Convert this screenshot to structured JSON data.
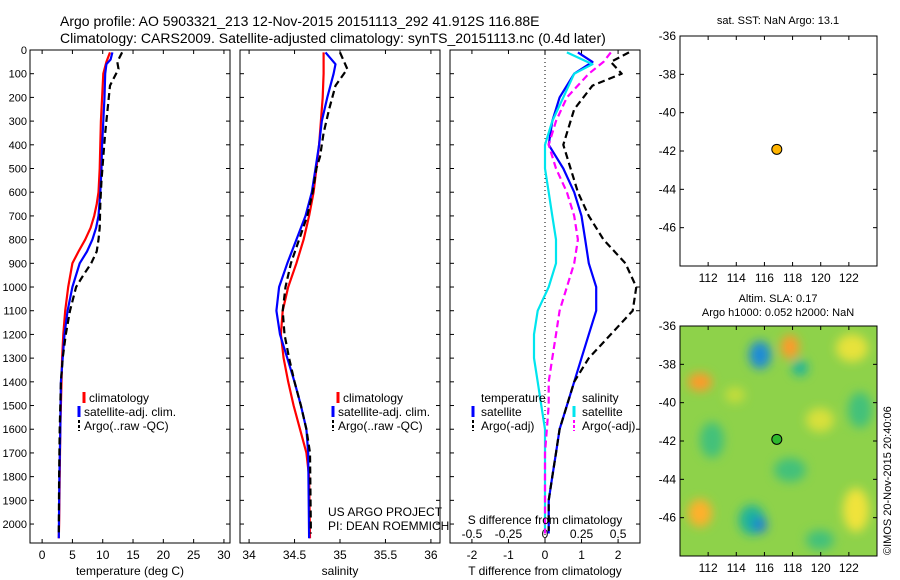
{
  "header": {
    "line1": "Argo profile: AO 5903321_213 12-Nov-2015 20151113_292 41.912S 116.88E",
    "line2": "Climatology: CARS2009. Satellite-adjusted climatology: synTS_20151113.nc (0.4d later)"
  },
  "colors": {
    "climatology": "#ff0000",
    "satellite": "#0000ff",
    "argo": "#000000",
    "sal_satellite": "#00e5ee",
    "sal_argo": "#ff00ff",
    "location_marker_sst": "#ffb400",
    "location_marker_sla": "#2db82d"
  },
  "chart_data": [
    {
      "type": "line",
      "id": "temperature",
      "xlabel": "temperature (deg C)",
      "xlim": [
        -2,
        31
      ],
      "xticks": [
        0,
        5,
        10,
        15,
        20,
        25,
        30
      ],
      "ylim": [
        0,
        2080
      ],
      "yticks": [
        0,
        100,
        200,
        300,
        400,
        500,
        600,
        700,
        800,
        900,
        1000,
        1100,
        1200,
        1300,
        1400,
        1500,
        1600,
        1700,
        1800,
        1900,
        2000
      ],
      "y_reversed": true,
      "legend": [
        "climatology",
        "satellite-adj. clim.",
        "Argo(..raw -QC)"
      ],
      "series": [
        {
          "name": "climatology",
          "style": "solid",
          "color": "#ff0000",
          "x": [
            11.2,
            10.6,
            10.1,
            9.9,
            9.7,
            9.6,
            9.5,
            9.3,
            9.0,
            8.6,
            8.0,
            7.1,
            6.0,
            5.0,
            4.3,
            3.8,
            3.5,
            3.3,
            3.2,
            3.0,
            2.9,
            2.8,
            2.75
          ],
          "y": [
            10,
            50,
            100,
            200,
            300,
            400,
            500,
            600,
            650,
            700,
            750,
            800,
            850,
            900,
            1000,
            1100,
            1200,
            1300,
            1400,
            1600,
            1800,
            2000,
            2060
          ]
        },
        {
          "name": "satellite-adj. clim.",
          "style": "solid",
          "color": "#0000ff",
          "x": [
            11.6,
            11.3,
            10.6,
            10.4,
            10.3,
            10.1,
            9.9,
            9.8,
            9.6,
            9.3,
            8.9,
            8.3,
            7.4,
            6.2,
            5.0,
            4.2,
            3.7,
            3.4,
            3.1,
            3.0,
            2.85,
            2.75
          ],
          "y": [
            10,
            40,
            60,
            100,
            200,
            300,
            400,
            500,
            600,
            700,
            750,
            800,
            850,
            900,
            1000,
            1100,
            1200,
            1300,
            1400,
            1600,
            1800,
            2060
          ]
        },
        {
          "name": "Argo(..raw -QC)",
          "style": "dashed",
          "color": "#000000",
          "x": [
            13.2,
            12.4,
            12.6,
            11.2,
            10.8,
            10.4,
            10.1,
            9.8,
            9.6,
            9.5,
            9.3,
            9.0,
            8.1,
            6.8,
            5.6,
            4.6,
            3.9,
            3.4,
            3.1,
            2.9,
            2.8,
            2.75
          ],
          "y": [
            10,
            50,
            80,
            150,
            250,
            350,
            450,
            550,
            650,
            750,
            800,
            850,
            900,
            950,
            1000,
            1100,
            1200,
            1300,
            1400,
            1600,
            1800,
            2040
          ]
        }
      ]
    },
    {
      "type": "line",
      "id": "salinity",
      "xlabel": "salinity",
      "xlim": [
        33.9,
        36.1
      ],
      "xticks": [
        34,
        34.5,
        35,
        35.5,
        36
      ],
      "ylim": [
        0,
        2080
      ],
      "y_reversed": true,
      "legend": [
        "climatology",
        "satellite-adj. clim.",
        "Argo(..raw -QC)"
      ],
      "annotation": [
        "US ARGO PROJECT",
        "PI: DEAN ROEMMICH"
      ],
      "series": [
        {
          "name": "climatology",
          "style": "solid",
          "color": "#ff0000",
          "x": [
            34.82,
            34.82,
            34.81,
            34.79,
            34.77,
            34.74,
            34.71,
            34.66,
            34.6,
            34.52,
            34.43,
            34.37,
            34.35,
            34.38,
            34.43,
            34.49,
            34.56,
            34.63,
            34.66,
            34.67
          ],
          "y": [
            10,
            100,
            200,
            300,
            400,
            500,
            600,
            700,
            800,
            900,
            1000,
            1100,
            1200,
            1300,
            1400,
            1500,
            1600,
            1700,
            1800,
            2060
          ]
        },
        {
          "name": "satellite-adj. clim.",
          "style": "solid",
          "color": "#0000ff",
          "x": [
            34.84,
            34.95,
            34.93,
            34.86,
            34.8,
            34.77,
            34.73,
            34.69,
            34.62,
            34.52,
            34.42,
            34.33,
            34.3,
            34.34,
            34.42,
            34.5,
            34.57,
            34.63,
            34.65,
            34.66
          ],
          "y": [
            10,
            60,
            100,
            200,
            300,
            400,
            500,
            600,
            700,
            800,
            900,
            1000,
            1100,
            1200,
            1300,
            1400,
            1500,
            1600,
            1700,
            2060
          ]
        },
        {
          "name": "Argo(..raw -QC)",
          "style": "dashed",
          "color": "#000000",
          "x": [
            35.0,
            35.08,
            34.95,
            34.88,
            34.82,
            34.78,
            34.74,
            34.7,
            34.64,
            34.55,
            34.46,
            34.4,
            34.37,
            34.39,
            34.44,
            34.5,
            34.57,
            34.63,
            34.67,
            34.68
          ],
          "y": [
            10,
            80,
            150,
            250,
            350,
            450,
            500,
            600,
            700,
            800,
            900,
            1000,
            1100,
            1200,
            1300,
            1400,
            1500,
            1600,
            1700,
            2040
          ]
        }
      ]
    },
    {
      "type": "line",
      "id": "differences",
      "xlabel": "T difference from climatology",
      "xlabel_top": "S difference from climatology",
      "xlim": [
        -2.6,
        2.6
      ],
      "xticks": [
        -2,
        -1,
        0,
        1,
        2
      ],
      "xtick_labels": [
        "-2",
        "-1",
        "0",
        "1",
        "2"
      ],
      "top_ticks": [
        -0.5,
        -0.25,
        0,
        0.25,
        0.5
      ],
      "top_tick_labels": [
        "-0.5",
        "-0.25",
        "0",
        "0.25",
        "0.5"
      ],
      "ylim": [
        0,
        2080
      ],
      "y_reversed": true,
      "legend_titles": [
        "temperature",
        "salinity"
      ],
      "legend": [
        "satellite",
        "Argo(-adj)",
        "satellite",
        "Argo(-adj)"
      ],
      "series": [
        {
          "name": "T satellite",
          "style": "solid",
          "color": "#0000ff",
          "x": [
            0.9,
            1.3,
            0.8,
            0.4,
            0.2,
            0.1,
            0.5,
            0.8,
            1.0,
            1.1,
            1.2,
            1.3,
            1.4,
            1.4,
            1.2,
            1.0,
            0.8,
            0.6,
            0.4,
            0.3,
            0.2,
            0.1,
            0.1
          ],
          "y": [
            10,
            50,
            100,
            200,
            300,
            400,
            500,
            600,
            700,
            800,
            900,
            950,
            1000,
            1100,
            1200,
            1300,
            1400,
            1500,
            1600,
            1700,
            1800,
            1900,
            2040
          ]
        },
        {
          "name": "T Argo(-adj)",
          "style": "dashed",
          "color": "#000000",
          "x": [
            2.3,
            1.8,
            2.1,
            1.3,
            0.8,
            0.5,
            0.7,
            0.9,
            1.2,
            1.6,
            2.2,
            2.5,
            2.4,
            1.8,
            1.2,
            0.8,
            0.6,
            0.4,
            0.3,
            0.2,
            0.1,
            0.1
          ],
          "y": [
            10,
            50,
            100,
            150,
            250,
            400,
            500,
            600,
            700,
            800,
            900,
            1000,
            1100,
            1200,
            1300,
            1400,
            1500,
            1600,
            1700,
            1800,
            1900,
            2030
          ]
        },
        {
          "name": "S satellite",
          "style": "solid",
          "color": "#00e5ee",
          "x": [
            0.6,
            1.3,
            0.8,
            0.5,
            0.2,
            0.0,
            0.0,
            0.1,
            0.2,
            0.3,
            0.3,
            0.1,
            -0.2,
            -0.3,
            -0.3,
            -0.2,
            -0.1,
            0.0,
            0.0,
            0.0
          ],
          "y": [
            10,
            60,
            100,
            200,
            300,
            400,
            500,
            600,
            700,
            800,
            900,
            1000,
            1100,
            1200,
            1300,
            1400,
            1500,
            1600,
            1800,
            2040
          ]
        },
        {
          "name": "S Argo(-adj)",
          "style": "dashed",
          "color": "#ff00ff",
          "x": [
            1.8,
            1.6,
            1.2,
            0.6,
            0.3,
            0.1,
            0.3,
            0.6,
            0.8,
            0.9,
            0.8,
            0.6,
            0.4,
            0.3,
            0.2,
            0.1,
            0.1,
            0.0,
            0.0
          ],
          "y": [
            10,
            50,
            100,
            200,
            300,
            400,
            500,
            600,
            700,
            800,
            900,
            1000,
            1100,
            1200,
            1300,
            1400,
            1500,
            1700,
            2040
          ]
        }
      ]
    },
    {
      "type": "scatter",
      "id": "sst_map",
      "title": "sat. SST: NaN Argo: 13.1",
      "xlim": [
        110,
        124
      ],
      "ylim": [
        -48,
        -36
      ],
      "xticks": [
        112,
        114,
        116,
        118,
        120,
        122
      ],
      "yticks": [
        -36,
        -38,
        -40,
        -42,
        -44,
        -46
      ],
      "points": [
        {
          "x": 116.88,
          "y": -41.912
        }
      ]
    },
    {
      "type": "heatmap",
      "id": "sla_map",
      "title_line1": "Altim. SLA: 0.17",
      "title_line2": "Argo h1000: 0.052 h2000: NaN",
      "xlim": [
        110,
        124
      ],
      "ylim": [
        -48,
        -36
      ],
      "xticks": [
        112,
        114,
        116,
        118,
        120,
        122
      ],
      "yticks": [
        -36,
        -38,
        -40,
        -42,
        -44,
        -46
      ],
      "points": [
        {
          "x": 116.88,
          "y": -41.912
        }
      ]
    }
  ],
  "stamp": "©IMOS 20-Nov-2015 20:40:06"
}
